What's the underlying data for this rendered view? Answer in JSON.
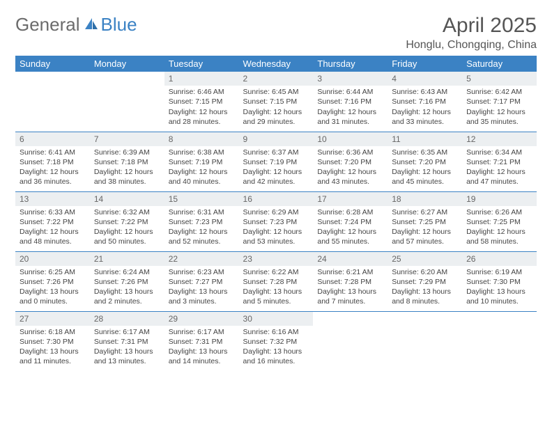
{
  "brand": {
    "part1": "General",
    "part2": "Blue"
  },
  "header": {
    "title": "April 2025",
    "location": "Honglu, Chongqing, China"
  },
  "colors": {
    "accent": "#3b82c4",
    "daynum_bg": "#eceff1",
    "text": "#444444",
    "title": "#555555"
  },
  "days_of_week": [
    "Sunday",
    "Monday",
    "Tuesday",
    "Wednesday",
    "Thursday",
    "Friday",
    "Saturday"
  ],
  "weeks": [
    [
      null,
      null,
      {
        "n": "1",
        "sr": "Sunrise: 6:46 AM",
        "ss": "Sunset: 7:15 PM",
        "dl": "Daylight: 12 hours and 28 minutes."
      },
      {
        "n": "2",
        "sr": "Sunrise: 6:45 AM",
        "ss": "Sunset: 7:15 PM",
        "dl": "Daylight: 12 hours and 29 minutes."
      },
      {
        "n": "3",
        "sr": "Sunrise: 6:44 AM",
        "ss": "Sunset: 7:16 PM",
        "dl": "Daylight: 12 hours and 31 minutes."
      },
      {
        "n": "4",
        "sr": "Sunrise: 6:43 AM",
        "ss": "Sunset: 7:16 PM",
        "dl": "Daylight: 12 hours and 33 minutes."
      },
      {
        "n": "5",
        "sr": "Sunrise: 6:42 AM",
        "ss": "Sunset: 7:17 PM",
        "dl": "Daylight: 12 hours and 35 minutes."
      }
    ],
    [
      {
        "n": "6",
        "sr": "Sunrise: 6:41 AM",
        "ss": "Sunset: 7:18 PM",
        "dl": "Daylight: 12 hours and 36 minutes."
      },
      {
        "n": "7",
        "sr": "Sunrise: 6:39 AM",
        "ss": "Sunset: 7:18 PM",
        "dl": "Daylight: 12 hours and 38 minutes."
      },
      {
        "n": "8",
        "sr": "Sunrise: 6:38 AM",
        "ss": "Sunset: 7:19 PM",
        "dl": "Daylight: 12 hours and 40 minutes."
      },
      {
        "n": "9",
        "sr": "Sunrise: 6:37 AM",
        "ss": "Sunset: 7:19 PM",
        "dl": "Daylight: 12 hours and 42 minutes."
      },
      {
        "n": "10",
        "sr": "Sunrise: 6:36 AM",
        "ss": "Sunset: 7:20 PM",
        "dl": "Daylight: 12 hours and 43 minutes."
      },
      {
        "n": "11",
        "sr": "Sunrise: 6:35 AM",
        "ss": "Sunset: 7:20 PM",
        "dl": "Daylight: 12 hours and 45 minutes."
      },
      {
        "n": "12",
        "sr": "Sunrise: 6:34 AM",
        "ss": "Sunset: 7:21 PM",
        "dl": "Daylight: 12 hours and 47 minutes."
      }
    ],
    [
      {
        "n": "13",
        "sr": "Sunrise: 6:33 AM",
        "ss": "Sunset: 7:22 PM",
        "dl": "Daylight: 12 hours and 48 minutes."
      },
      {
        "n": "14",
        "sr": "Sunrise: 6:32 AM",
        "ss": "Sunset: 7:22 PM",
        "dl": "Daylight: 12 hours and 50 minutes."
      },
      {
        "n": "15",
        "sr": "Sunrise: 6:31 AM",
        "ss": "Sunset: 7:23 PM",
        "dl": "Daylight: 12 hours and 52 minutes."
      },
      {
        "n": "16",
        "sr": "Sunrise: 6:29 AM",
        "ss": "Sunset: 7:23 PM",
        "dl": "Daylight: 12 hours and 53 minutes."
      },
      {
        "n": "17",
        "sr": "Sunrise: 6:28 AM",
        "ss": "Sunset: 7:24 PM",
        "dl": "Daylight: 12 hours and 55 minutes."
      },
      {
        "n": "18",
        "sr": "Sunrise: 6:27 AM",
        "ss": "Sunset: 7:25 PM",
        "dl": "Daylight: 12 hours and 57 minutes."
      },
      {
        "n": "19",
        "sr": "Sunrise: 6:26 AM",
        "ss": "Sunset: 7:25 PM",
        "dl": "Daylight: 12 hours and 58 minutes."
      }
    ],
    [
      {
        "n": "20",
        "sr": "Sunrise: 6:25 AM",
        "ss": "Sunset: 7:26 PM",
        "dl": "Daylight: 13 hours and 0 minutes."
      },
      {
        "n": "21",
        "sr": "Sunrise: 6:24 AM",
        "ss": "Sunset: 7:26 PM",
        "dl": "Daylight: 13 hours and 2 minutes."
      },
      {
        "n": "22",
        "sr": "Sunrise: 6:23 AM",
        "ss": "Sunset: 7:27 PM",
        "dl": "Daylight: 13 hours and 3 minutes."
      },
      {
        "n": "23",
        "sr": "Sunrise: 6:22 AM",
        "ss": "Sunset: 7:28 PM",
        "dl": "Daylight: 13 hours and 5 minutes."
      },
      {
        "n": "24",
        "sr": "Sunrise: 6:21 AM",
        "ss": "Sunset: 7:28 PM",
        "dl": "Daylight: 13 hours and 7 minutes."
      },
      {
        "n": "25",
        "sr": "Sunrise: 6:20 AM",
        "ss": "Sunset: 7:29 PM",
        "dl": "Daylight: 13 hours and 8 minutes."
      },
      {
        "n": "26",
        "sr": "Sunrise: 6:19 AM",
        "ss": "Sunset: 7:30 PM",
        "dl": "Daylight: 13 hours and 10 minutes."
      }
    ],
    [
      {
        "n": "27",
        "sr": "Sunrise: 6:18 AM",
        "ss": "Sunset: 7:30 PM",
        "dl": "Daylight: 13 hours and 11 minutes."
      },
      {
        "n": "28",
        "sr": "Sunrise: 6:17 AM",
        "ss": "Sunset: 7:31 PM",
        "dl": "Daylight: 13 hours and 13 minutes."
      },
      {
        "n": "29",
        "sr": "Sunrise: 6:17 AM",
        "ss": "Sunset: 7:31 PM",
        "dl": "Daylight: 13 hours and 14 minutes."
      },
      {
        "n": "30",
        "sr": "Sunrise: 6:16 AM",
        "ss": "Sunset: 7:32 PM",
        "dl": "Daylight: 13 hours and 16 minutes."
      },
      null,
      null,
      null
    ]
  ]
}
